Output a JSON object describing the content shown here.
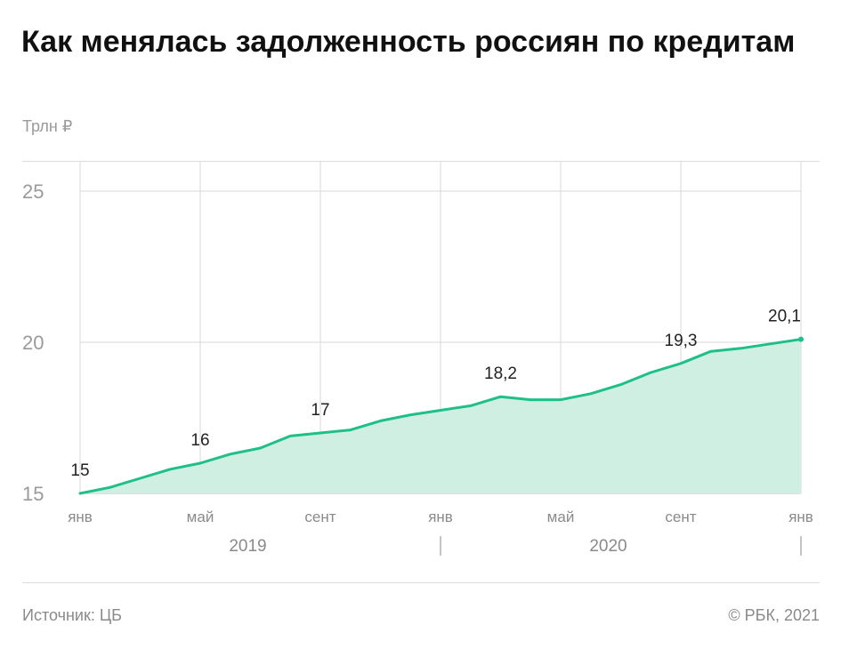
{
  "title": "Как менялась задолженность россиян по кредитам",
  "unit_label": "Трлн ₽",
  "source": "Источник:  ЦБ",
  "copyright": "©  РБК, 2021",
  "colors": {
    "line": "#1fbf8a",
    "fill": "#cfefe2",
    "grid": "#d9d9d9"
  },
  "chart_data": {
    "type": "area",
    "title": "Как менялась задолженность россиян по кредитам",
    "ylabel": "Трлн ₽",
    "xlabel": "",
    "ylim": [
      15,
      25
    ],
    "yticks": [
      15,
      20,
      25
    ],
    "grid": true,
    "x": [
      "2019-01",
      "2019-02",
      "2019-03",
      "2019-04",
      "2019-05",
      "2019-06",
      "2019-07",
      "2019-08",
      "2019-09",
      "2019-10",
      "2019-11",
      "2019-12",
      "2020-01",
      "2020-02",
      "2020-03",
      "2020-04",
      "2020-05",
      "2020-06",
      "2020-07",
      "2020-08",
      "2020-09",
      "2020-10",
      "2020-11",
      "2020-12",
      "2021-01"
    ],
    "values": [
      15.0,
      15.2,
      15.5,
      15.8,
      16.0,
      16.3,
      16.5,
      16.9,
      17.0,
      17.1,
      17.4,
      17.6,
      17.75,
      17.9,
      18.2,
      18.1,
      18.1,
      18.3,
      18.6,
      19.0,
      19.3,
      19.7,
      19.8,
      19.95,
      20.1
    ],
    "xtick_labels": [
      {
        "x": "2019-01",
        "label": "янв"
      },
      {
        "x": "2019-05",
        "label": "май"
      },
      {
        "x": "2019-09",
        "label": "сент"
      },
      {
        "x": "2020-01",
        "label": "янв"
      },
      {
        "x": "2020-05",
        "label": "май"
      },
      {
        "x": "2020-09",
        "label": "сент"
      },
      {
        "x": "2021-01",
        "label": "янв"
      }
    ],
    "year_labels": [
      {
        "label": "2019"
      },
      {
        "label": "2020"
      }
    ],
    "annotations": [
      {
        "x": "2019-01",
        "label": "15"
      },
      {
        "x": "2019-05",
        "label": "16"
      },
      {
        "x": "2019-09",
        "label": "17"
      },
      {
        "x": "2020-03",
        "label": "18,2"
      },
      {
        "x": "2020-09",
        "label": "19,3"
      },
      {
        "x": "2021-01",
        "label": "20,1"
      }
    ]
  }
}
